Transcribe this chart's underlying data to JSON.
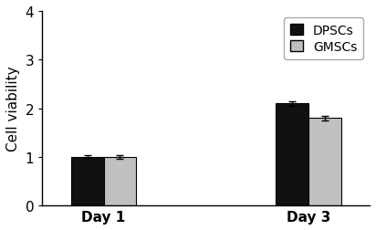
{
  "categories": [
    "Day 1",
    "Day 3"
  ],
  "dpsc_values": [
    1.0,
    2.1
  ],
  "gmsc_values": [
    1.0,
    1.8
  ],
  "dpsc_errors": [
    0.03,
    0.05
  ],
  "gmsc_errors": [
    0.04,
    0.05
  ],
  "dpsc_color": "#111111",
  "gmsc_color": "#c0c0c0",
  "ylabel": "Cell viability",
  "ylim": [
    0,
    4
  ],
  "yticks": [
    0,
    1,
    2,
    3,
    4
  ],
  "legend_labels": [
    "DPSCs",
    "GMSCs"
  ],
  "bar_width": 0.32,
  "background_color": "#ffffff",
  "edge_color": "#000000",
  "label_fontsize": 11,
  "tick_fontsize": 11,
  "legend_fontsize": 10
}
